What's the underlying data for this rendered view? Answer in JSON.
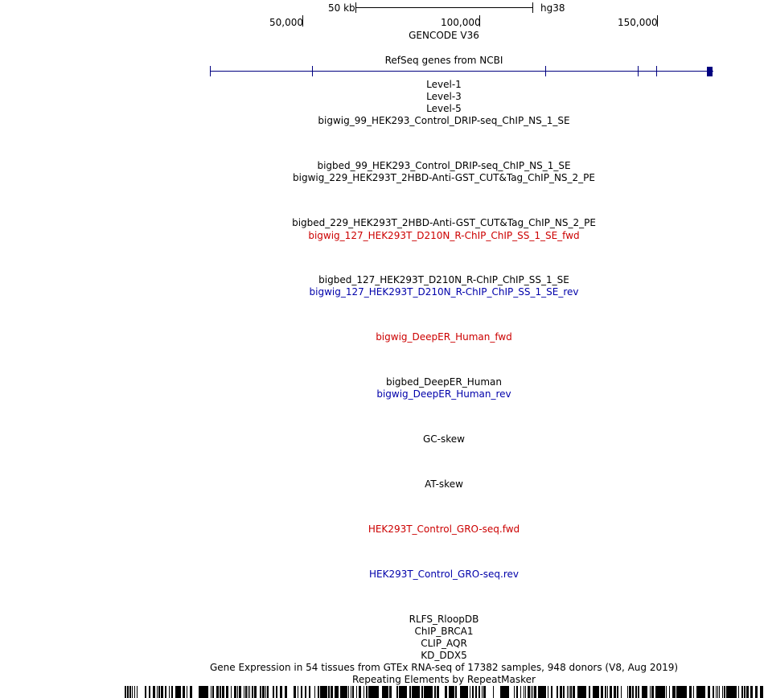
{
  "ruler": {
    "scale_label": "50 kb",
    "assembly": "hg38",
    "positions": [
      "50,000",
      "100,000",
      "150,000"
    ]
  },
  "tracks": [
    {
      "label": "GENCODE V36",
      "color": "#000000"
    },
    {
      "label": "RefSeq genes from NCBI",
      "color": "#000000"
    },
    {
      "label": "Level-1",
      "color": "#000000"
    },
    {
      "label": "Level-3",
      "color": "#000000"
    },
    {
      "label": "Level-5",
      "color": "#000000"
    },
    {
      "label": "bigwig_99_HEK293_Control_DRIP-seq_ChIP_NS_1_SE",
      "color": "#000000"
    },
    {
      "label": "bigbed_99_HEK293_Control_DRIP-seq_ChIP_NS_1_SE",
      "color": "#000000"
    },
    {
      "label": "bigwig_229_HEK293T_2HBD-Anti-GST_CUT&Tag_ChIP_NS_2_PE",
      "color": "#000000"
    },
    {
      "label": "bigbed_229_HEK293T_2HBD-Anti-GST_CUT&Tag_ChIP_NS_2_PE",
      "color": "#000000"
    },
    {
      "label": "bigwig_127_HEK293T_D210N_R-ChIP_ChIP_SS_1_SE_fwd",
      "color": "#cc0000"
    },
    {
      "label": "bigbed_127_HEK293T_D210N_R-ChIP_ChIP_SS_1_SE",
      "color": "#000000"
    },
    {
      "label": "bigwig_127_HEK293T_D210N_R-ChIP_ChIP_SS_1_SE_rev",
      "color": "#0000aa"
    },
    {
      "label": "bigwig_DeepER_Human_fwd",
      "color": "#cc0000"
    },
    {
      "label": "bigbed_DeepER_Human",
      "color": "#000000"
    },
    {
      "label": "bigwig_DeepER_Human_rev",
      "color": "#0000aa"
    },
    {
      "label": "GC-skew",
      "color": "#000000"
    },
    {
      "label": "AT-skew",
      "color": "#000000"
    },
    {
      "label": "HEK293T_Control_GRO-seq.fwd",
      "color": "#cc0000"
    },
    {
      "label": "HEK293T_Control_GRO-seq.rev",
      "color": "#0000aa"
    },
    {
      "label": "RLFS_RloopDB",
      "color": "#000000"
    },
    {
      "label": "ChIP_BRCA1",
      "color": "#000000"
    },
    {
      "label": "CLIP_AQR",
      "color": "#000000"
    },
    {
      "label": "KD_DDX5",
      "color": "#000000"
    },
    {
      "label": "Gene Expression in 54 tissues from GTEx RNA-seq of 17382 samples, 948 donors (V8, Aug 2019)",
      "color": "#000000"
    },
    {
      "label": "Repeating Elements by RepeatMasker",
      "color": "#000000"
    }
  ],
  "colors": {
    "gene_model": "#000080",
    "fwd_strand": "#cc0000",
    "rev_strand": "#0000aa",
    "repeatmasker": "#000000"
  }
}
